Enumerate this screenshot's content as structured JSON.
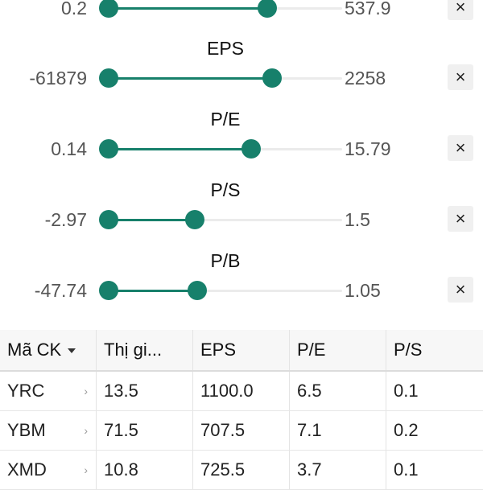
{
  "colors": {
    "accent": "#17806b",
    "track": "#ebebeb",
    "close_bg": "#f0f0f0"
  },
  "filters": [
    {
      "title": "",
      "min": "0.2",
      "max": "537.9",
      "low": 0.0,
      "high": 0.68
    },
    {
      "title": "EPS",
      "min": "-61879",
      "max": "2258",
      "low": 0.0,
      "high": 0.7
    },
    {
      "title": "P/E",
      "min": "0.14",
      "max": "15.79",
      "low": 0.0,
      "high": 0.61
    },
    {
      "title": "P/S",
      "min": "-2.97",
      "max": "1.5",
      "low": 0.0,
      "high": 0.37
    },
    {
      "title": "P/B",
      "min": "-47.74",
      "max": "1.05",
      "low": 0.0,
      "high": 0.38
    }
  ],
  "close_icon_glyph": "×",
  "table": {
    "sort_icon": "caret-down-icon",
    "headers": [
      "Mã CK",
      "Thị gi...",
      "EPS",
      "P/E",
      "P/S"
    ],
    "rows": [
      [
        "YRC",
        "13.5",
        "1100.0",
        "6.5",
        "0.1"
      ],
      [
        "YBM",
        "71.5",
        "707.5",
        "7.1",
        "0.2"
      ],
      [
        "XMD",
        "10.8",
        "725.5",
        "3.7",
        "0.1"
      ]
    ]
  }
}
